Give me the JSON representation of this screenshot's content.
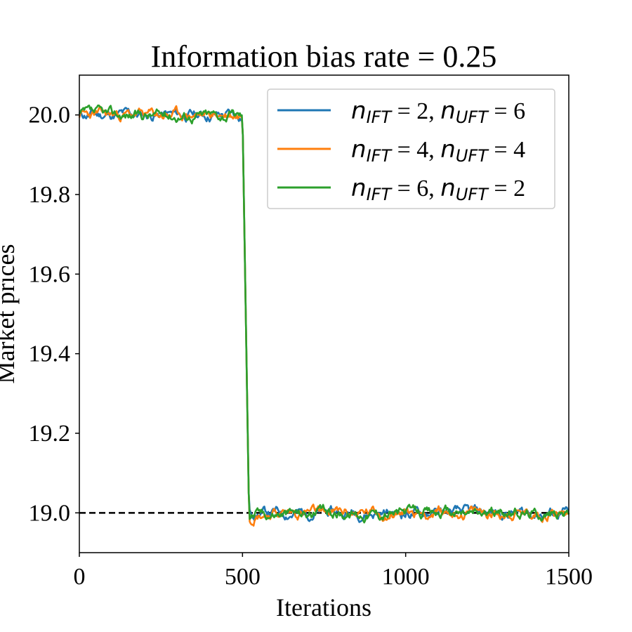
{
  "chart_data": {
    "type": "line",
    "title": "Information bias rate = 0.25",
    "xlabel": "Iterations",
    "ylabel": "Market prices",
    "xlim": [
      0,
      1500
    ],
    "ylim": [
      18.9,
      20.1
    ],
    "xticks": [
      "0",
      "500",
      "1000",
      "1500"
    ],
    "yticks": [
      "19.0",
      "19.2",
      "19.4",
      "19.6",
      "19.8",
      "20.0"
    ],
    "legend_position": "top-right",
    "grid": false,
    "reference_line": {
      "y": 19.0,
      "style": "dashed",
      "color": "#000000",
      "x_end": 1500
    },
    "series": [
      {
        "name": "n_IFT = 2, n_UFT = 6",
        "color": "#1f77b4",
        "seed": 11,
        "pre_level": 20.0,
        "post_level": 19.0,
        "jump_start": 500,
        "jump_end": 520
      },
      {
        "name": "n_IFT = 4, n_UFT = 4",
        "color": "#ff7f0e",
        "seed": 23,
        "pre_level": 20.0,
        "post_level": 19.0,
        "jump_start": 500,
        "jump_end": 520
      },
      {
        "name": "n_IFT = 6, n_UFT = 2",
        "color": "#2ca02c",
        "seed": 37,
        "pre_level": 20.0,
        "post_level": 19.0,
        "jump_start": 500,
        "jump_end": 520
      }
    ]
  },
  "legend": [
    {
      "n1_base": "n",
      "n1_sub": "IFT",
      "n1_val": " = 2, ",
      "n2_base": "n",
      "n2_sub": "UFT",
      "n2_val": " = 6"
    },
    {
      "n1_base": "n",
      "n1_sub": "IFT",
      "n1_val": " = 4, ",
      "n2_base": "n",
      "n2_sub": "UFT",
      "n2_val": " = 4"
    },
    {
      "n1_base": "n",
      "n1_sub": "IFT",
      "n1_val": " = 6, ",
      "n2_base": "n",
      "n2_sub": "UFT",
      "n2_val": " = 2"
    }
  ]
}
